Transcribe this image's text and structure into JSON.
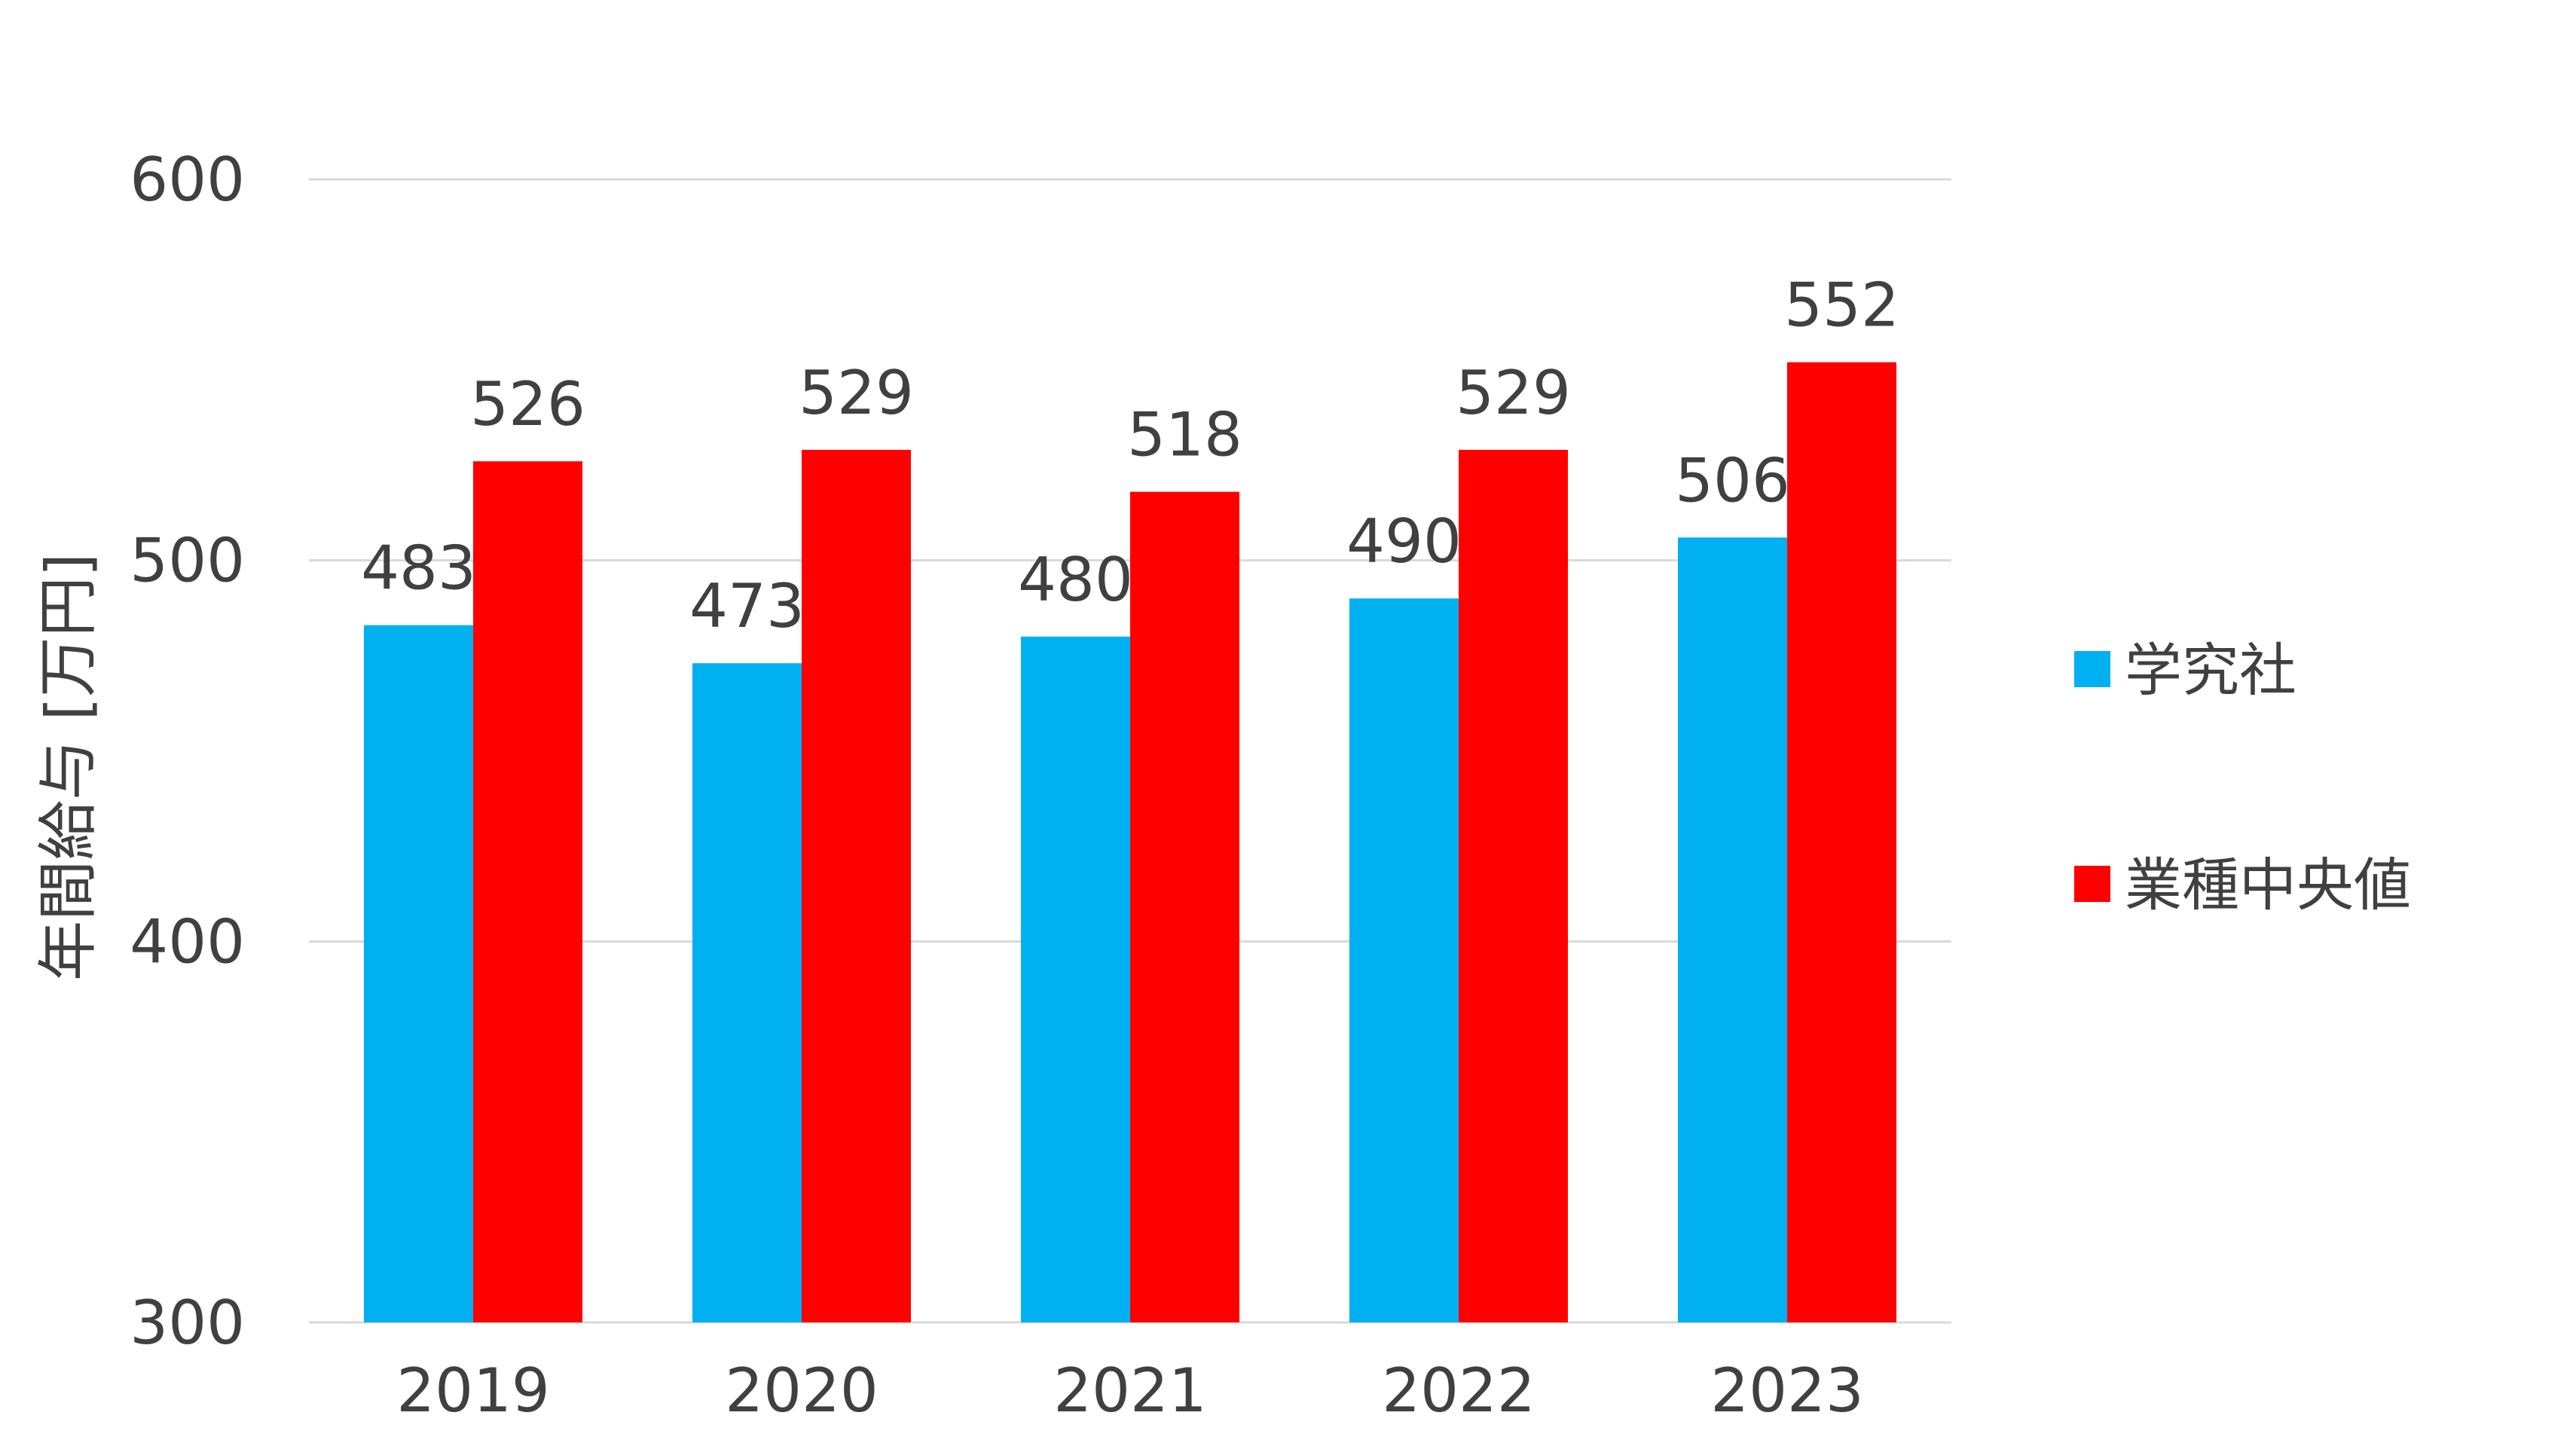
{
  "chart_data": {
    "type": "bar",
    "categories": [
      "2019",
      "2020",
      "2021",
      "2022",
      "2023"
    ],
    "series": [
      {
        "name": "学究社",
        "values": [
          483,
          473,
          480,
          490,
          506
        ],
        "color": "#00B0F0"
      },
      {
        "name": "業種中央値",
        "values": [
          526,
          529,
          518,
          529,
          552
        ],
        "color": "#FF0000"
      }
    ],
    "ylabel": "年間給与 [万円]",
    "ylim": [
      300,
      600
    ],
    "yticks": [
      300,
      400,
      500,
      600
    ],
    "ytick_labels": [
      "300",
      "400",
      "500",
      "600"
    ],
    "grid": true,
    "gridline_color": "#D9D9D9",
    "legend_position": "right"
  }
}
